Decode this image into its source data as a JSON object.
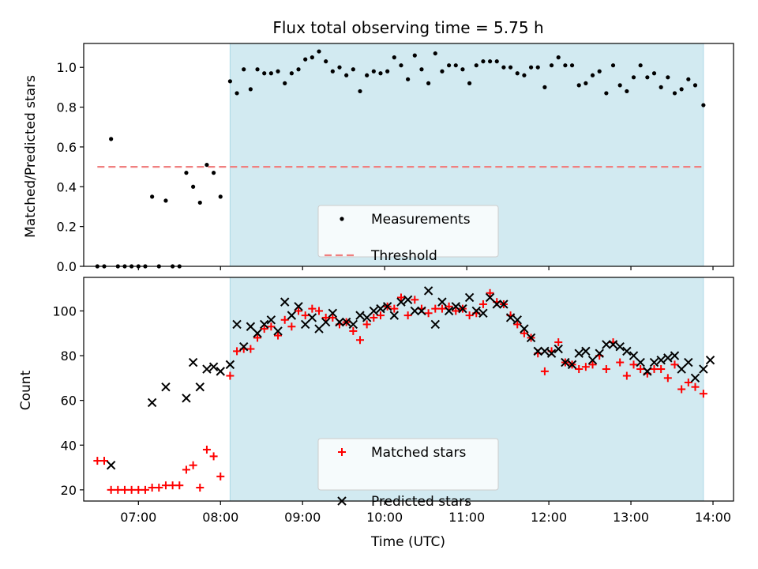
{
  "chart_data": [
    {
      "type": "scatter",
      "title": "Flux total observing time = 5.75 h",
      "xlabel": "",
      "ylabel": "Matched/Predicted stars",
      "ylim": [
        0,
        1.12
      ],
      "yticks": [
        "0.0",
        "0.2",
        "0.4",
        "0.6",
        "0.8",
        "1.0"
      ],
      "xlim": [
        "06:20",
        "14:15"
      ],
      "shaded_span": {
        "from": "08:07",
        "to": "13:53",
        "color": "#add8e6"
      },
      "threshold": {
        "y": 0.5,
        "from": "06:30",
        "to": "13:53",
        "color": "#f08080"
      },
      "legend": {
        "position": "lower-center",
        "entries": [
          "Measurements",
          "Threshold"
        ]
      },
      "series": [
        {
          "name": "Measurements",
          "color": "#000000",
          "points": [
            [
              "06:30",
              0.0
            ],
            [
              "06:35",
              0.0
            ],
            [
              "06:40",
              0.64
            ],
            [
              "06:45",
              0.0
            ],
            [
              "06:50",
              0.0
            ],
            [
              "06:55",
              0.0
            ],
            [
              "07:00",
              0.0
            ],
            [
              "07:05",
              0.0
            ],
            [
              "07:10",
              0.35
            ],
            [
              "07:15",
              0.0
            ],
            [
              "07:20",
              0.33
            ],
            [
              "07:25",
              0.0
            ],
            [
              "07:30",
              0.0
            ],
            [
              "07:35",
              0.47
            ],
            [
              "07:40",
              0.4
            ],
            [
              "07:45",
              0.32
            ],
            [
              "07:50",
              0.51
            ],
            [
              "07:55",
              0.47
            ],
            [
              "08:00",
              0.35
            ],
            [
              "08:07",
              0.93
            ],
            [
              "08:12",
              0.87
            ],
            [
              "08:17",
              0.99
            ],
            [
              "08:22",
              0.89
            ],
            [
              "08:27",
              0.99
            ],
            [
              "08:32",
              0.97
            ],
            [
              "08:37",
              0.97
            ],
            [
              "08:42",
              0.98
            ],
            [
              "08:47",
              0.92
            ],
            [
              "08:52",
              0.97
            ],
            [
              "08:57",
              0.99
            ],
            [
              "09:02",
              1.04
            ],
            [
              "09:07",
              1.05
            ],
            [
              "09:12",
              1.08
            ],
            [
              "09:17",
              1.03
            ],
            [
              "09:22",
              0.98
            ],
            [
              "09:27",
              1.0
            ],
            [
              "09:32",
              0.96
            ],
            [
              "09:37",
              0.99
            ],
            [
              "09:42",
              0.88
            ],
            [
              "09:47",
              0.96
            ],
            [
              "09:52",
              0.98
            ],
            [
              "09:57",
              0.97
            ],
            [
              "10:02",
              0.98
            ],
            [
              "10:07",
              1.05
            ],
            [
              "10:12",
              1.01
            ],
            [
              "10:17",
              0.94
            ],
            [
              "10:22",
              1.06
            ],
            [
              "10:27",
              0.99
            ],
            [
              "10:32",
              0.92
            ],
            [
              "10:37",
              1.07
            ],
            [
              "10:42",
              0.98
            ],
            [
              "10:47",
              1.01
            ],
            [
              "10:52",
              1.01
            ],
            [
              "10:57",
              0.99
            ],
            [
              "11:02",
              0.92
            ],
            [
              "11:07",
              1.01
            ],
            [
              "11:12",
              1.03
            ],
            [
              "11:17",
              1.03
            ],
            [
              "11:22",
              1.03
            ],
            [
              "11:27",
              1.0
            ],
            [
              "11:32",
              1.0
            ],
            [
              "11:37",
              0.97
            ],
            [
              "11:42",
              0.96
            ],
            [
              "11:47",
              1.0
            ],
            [
              "11:52",
              1.0
            ],
            [
              "11:57",
              0.9
            ],
            [
              "12:02",
              1.01
            ],
            [
              "12:07",
              1.05
            ],
            [
              "12:12",
              1.01
            ],
            [
              "12:17",
              1.01
            ],
            [
              "12:22",
              0.91
            ],
            [
              "12:27",
              0.92
            ],
            [
              "12:32",
              0.96
            ],
            [
              "12:37",
              0.98
            ],
            [
              "12:42",
              0.87
            ],
            [
              "12:47",
              1.01
            ],
            [
              "12:52",
              0.91
            ],
            [
              "12:57",
              0.88
            ],
            [
              "13:02",
              0.95
            ],
            [
              "13:07",
              1.01
            ],
            [
              "13:12",
              0.95
            ],
            [
              "13:17",
              0.97
            ],
            [
              "13:22",
              0.9
            ],
            [
              "13:27",
              0.95
            ],
            [
              "13:32",
              0.87
            ],
            [
              "13:37",
              0.89
            ],
            [
              "13:42",
              0.94
            ],
            [
              "13:47",
              0.91
            ],
            [
              "13:53",
              0.81
            ]
          ]
        }
      ]
    },
    {
      "type": "scatter",
      "title": "",
      "xlabel": "Time (UTC)",
      "ylabel": "Count",
      "ylim": [
        15,
        115
      ],
      "yticks": [
        "20",
        "40",
        "60",
        "80",
        "100"
      ],
      "xticks": [
        "07:00",
        "08:00",
        "09:00",
        "10:00",
        "11:00",
        "12:00",
        "13:00",
        "14:00"
      ],
      "xlim": [
        "06:20",
        "14:15"
      ],
      "shaded_span": {
        "from": "08:07",
        "to": "13:53",
        "color": "#add8e6"
      },
      "legend": {
        "position": "lower-center",
        "entries": [
          "Matched stars",
          "Predicted stars"
        ]
      },
      "series": [
        {
          "name": "Matched stars",
          "color": "#ff0000",
          "marker": "+",
          "points": [
            [
              "06:30",
              33
            ],
            [
              "06:35",
              33
            ],
            [
              "06:40",
              20
            ],
            [
              "06:45",
              20
            ],
            [
              "06:50",
              20
            ],
            [
              "06:55",
              20
            ],
            [
              "07:00",
              20
            ],
            [
              "07:05",
              20
            ],
            [
              "07:10",
              21
            ],
            [
              "07:15",
              21
            ],
            [
              "07:20",
              22
            ],
            [
              "07:25",
              22
            ],
            [
              "07:30",
              22
            ],
            [
              "07:35",
              29
            ],
            [
              "07:40",
              31
            ],
            [
              "07:45",
              21
            ],
            [
              "07:50",
              38
            ],
            [
              "07:55",
              35
            ],
            [
              "08:00",
              26
            ],
            [
              "08:07",
              71
            ],
            [
              "08:12",
              82
            ],
            [
              "08:17",
              83
            ],
            [
              "08:22",
              83
            ],
            [
              "08:27",
              88
            ],
            [
              "08:32",
              92
            ],
            [
              "08:37",
              93
            ],
            [
              "08:42",
              89
            ],
            [
              "08:47",
              96
            ],
            [
              "08:52",
              93
            ],
            [
              "08:57",
              100
            ],
            [
              "09:02",
              98
            ],
            [
              "09:07",
              101
            ],
            [
              "09:12",
              100
            ],
            [
              "09:17",
              97
            ],
            [
              "09:22",
              97
            ],
            [
              "09:27",
              94
            ],
            [
              "09:32",
              95
            ],
            [
              "09:37",
              91
            ],
            [
              "09:42",
              87
            ],
            [
              "09:47",
              94
            ],
            [
              "09:52",
              97
            ],
            [
              "09:57",
              98
            ],
            [
              "10:02",
              102
            ],
            [
              "10:07",
              101
            ],
            [
              "10:12",
              106
            ],
            [
              "10:17",
              98
            ],
            [
              "10:22",
              105
            ],
            [
              "10:27",
              101
            ],
            [
              "10:32",
              99
            ],
            [
              "10:37",
              101
            ],
            [
              "10:42",
              101
            ],
            [
              "10:47",
              102
            ],
            [
              "10:52",
              100
            ],
            [
              "10:57",
              101
            ],
            [
              "11:02",
              98
            ],
            [
              "11:07",
              99
            ],
            [
              "11:12",
              103
            ],
            [
              "11:17",
              108
            ],
            [
              "11:22",
              104
            ],
            [
              "11:27",
              103
            ],
            [
              "11:32",
              98
            ],
            [
              "11:37",
              94
            ],
            [
              "11:42",
              90
            ],
            [
              "11:47",
              88
            ],
            [
              "11:52",
              81
            ],
            [
              "11:57",
              73
            ],
            [
              "12:02",
              82
            ],
            [
              "12:07",
              86
            ],
            [
              "12:12",
              77
            ],
            [
              "12:17",
              76
            ],
            [
              "12:22",
              74
            ],
            [
              "12:27",
              75
            ],
            [
              "12:32",
              76
            ],
            [
              "12:37",
              80
            ],
            [
              "12:42",
              74
            ],
            [
              "12:47",
              86
            ],
            [
              "12:52",
              77
            ],
            [
              "12:57",
              71
            ],
            [
              "13:02",
              76
            ],
            [
              "13:07",
              74
            ],
            [
              "13:12",
              72
            ],
            [
              "13:17",
              74
            ],
            [
              "13:22",
              74
            ],
            [
              "13:27",
              70
            ],
            [
              "13:32",
              76
            ],
            [
              "13:37",
              65
            ],
            [
              "13:42",
              68
            ],
            [
              "13:47",
              66
            ],
            [
              "13:53",
              63
            ]
          ]
        },
        {
          "name": "Predicted stars",
          "color": "#000000",
          "marker": "x",
          "points": [
            [
              "06:40",
              31
            ],
            [
              "07:10",
              59
            ],
            [
              "07:20",
              66
            ],
            [
              "07:35",
              61
            ],
            [
              "07:40",
              77
            ],
            [
              "07:45",
              66
            ],
            [
              "07:50",
              74
            ],
            [
              "07:55",
              75
            ],
            [
              "08:00",
              73
            ],
            [
              "08:07",
              76
            ],
            [
              "08:12",
              94
            ],
            [
              "08:17",
              84
            ],
            [
              "08:22",
              93
            ],
            [
              "08:27",
              90
            ],
            [
              "08:32",
              94
            ],
            [
              "08:37",
              96
            ],
            [
              "08:42",
              91
            ],
            [
              "08:47",
              104
            ],
            [
              "08:52",
              98
            ],
            [
              "08:57",
              102
            ],
            [
              "09:02",
              94
            ],
            [
              "09:07",
              97
            ],
            [
              "09:12",
              92
            ],
            [
              "09:17",
              95
            ],
            [
              "09:22",
              99
            ],
            [
              "09:27",
              95
            ],
            [
              "09:32",
              95
            ],
            [
              "09:37",
              94
            ],
            [
              "09:42",
              98
            ],
            [
              "09:47",
              97
            ],
            [
              "09:52",
              100
            ],
            [
              "09:57",
              101
            ],
            [
              "10:02",
              102
            ],
            [
              "10:07",
              98
            ],
            [
              "10:12",
              104
            ],
            [
              "10:17",
              105
            ],
            [
              "10:22",
              100
            ],
            [
              "10:27",
              100
            ],
            [
              "10:32",
              109
            ],
            [
              "10:37",
              94
            ],
            [
              "10:42",
              104
            ],
            [
              "10:47",
              100
            ],
            [
              "10:52",
              102
            ],
            [
              "10:57",
              101
            ],
            [
              "11:02",
              106
            ],
            [
              "11:07",
              100
            ],
            [
              "11:12",
              99
            ],
            [
              "11:17",
              106
            ],
            [
              "11:22",
              103
            ],
            [
              "11:27",
              103
            ],
            [
              "11:32",
              97
            ],
            [
              "11:37",
              96
            ],
            [
              "11:42",
              92
            ],
            [
              "11:47",
              88
            ],
            [
              "11:52",
              82
            ],
            [
              "11:57",
              82
            ],
            [
              "12:02",
              81
            ],
            [
              "12:07",
              83
            ],
            [
              "12:12",
              77
            ],
            [
              "12:17",
              76
            ],
            [
              "12:22",
              81
            ],
            [
              "12:27",
              82
            ],
            [
              "12:32",
              78
            ],
            [
              "12:37",
              81
            ],
            [
              "12:42",
              85
            ],
            [
              "12:47",
              85
            ],
            [
              "12:52",
              84
            ],
            [
              "12:57",
              82
            ],
            [
              "13:02",
              80
            ],
            [
              "13:07",
              77
            ],
            [
              "13:12",
              73
            ],
            [
              "13:17",
              77
            ],
            [
              "13:22",
              78
            ],
            [
              "13:27",
              79
            ],
            [
              "13:32",
              80
            ],
            [
              "13:37",
              74
            ],
            [
              "13:42",
              77
            ],
            [
              "13:47",
              70
            ],
            [
              "13:53",
              74
            ],
            [
              "13:58",
              78
            ]
          ]
        }
      ]
    }
  ]
}
